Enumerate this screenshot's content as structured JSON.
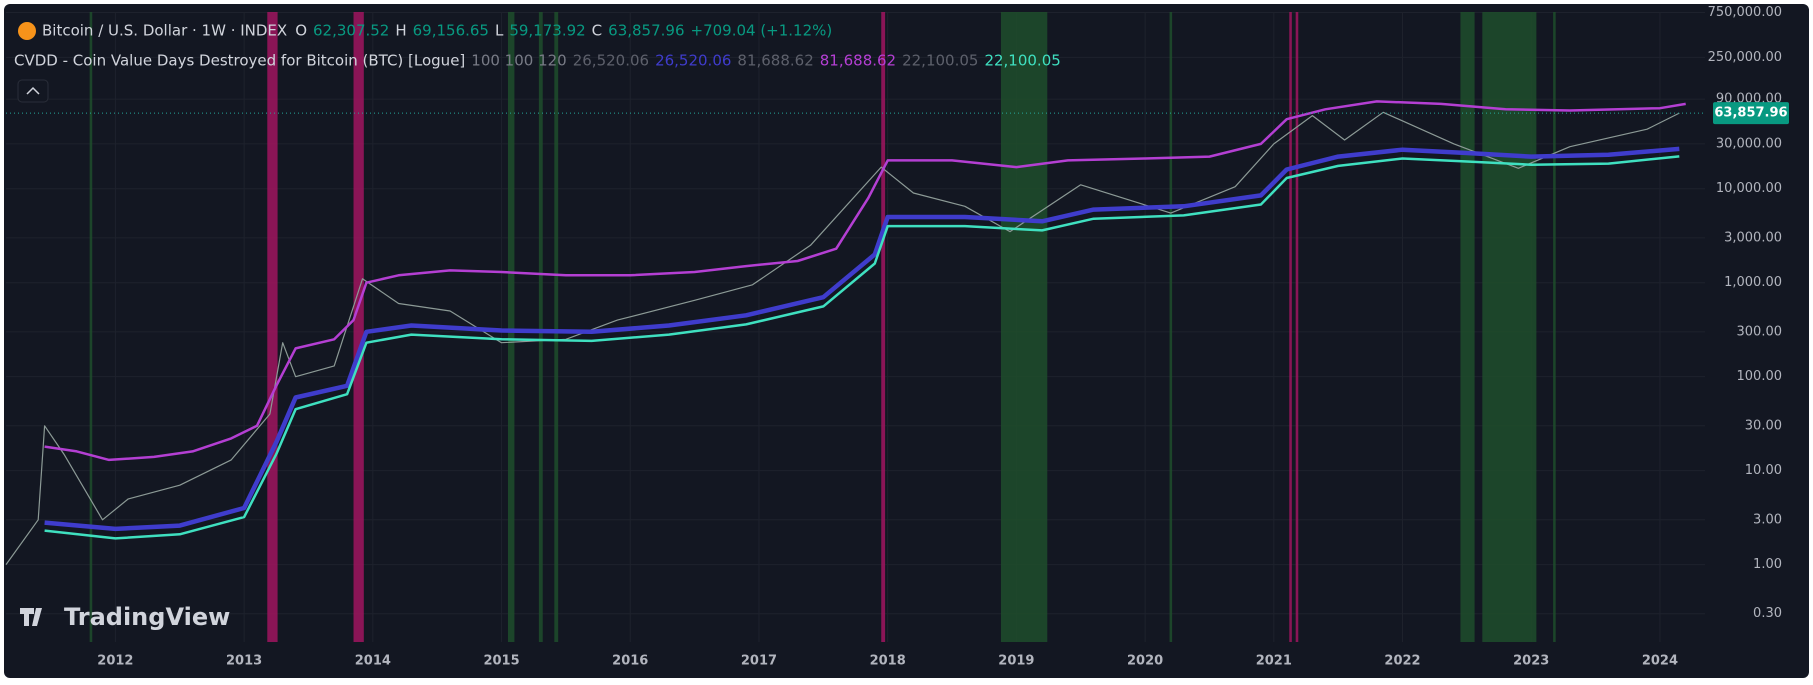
{
  "chart_data": {
    "type": "line",
    "header": {
      "symbol": "Bitcoin / U.S. Dollar · 1W · INDEX",
      "o_key": "O",
      "o": "62,307.52",
      "h_key": "H",
      "h": "69,156.65",
      "l_key": "L",
      "l": "59,173.92",
      "c_key": "C",
      "c": "63,857.96",
      "change": "+709.04 (+1.12%)",
      "indicator": "CVDD - Coin Value Days Destroyed for Bitcoin (BTC) [Logue]",
      "params": "100 100 120",
      "v1_muted": "26,520.06",
      "v1": "26,520.06",
      "v2_muted": "81,688.62",
      "v2": "81,688.62",
      "v3_muted": "22,100.05",
      "v3": "22,100.05"
    },
    "logo": "TradingView",
    "price_label": "63,857.96",
    "log_scale": true,
    "grid": true,
    "xlim": [
      2011.15,
      2024.35
    ],
    "ylim": [
      0.15,
      760000
    ],
    "xticks": [
      2012,
      2013,
      2014,
      2015,
      2016,
      2017,
      2018,
      2019,
      2020,
      2021,
      2022,
      2023,
      2024
    ],
    "yticks": [
      {
        "value": 750000,
        "label": "750,000.00"
      },
      {
        "value": 250000,
        "label": "250,000.00"
      },
      {
        "value": 90000,
        "label": "90,000.00"
      },
      {
        "value": 30000,
        "label": "30,000.00"
      },
      {
        "value": 10000,
        "label": "10,000.00"
      },
      {
        "value": 3000,
        "label": "3,000.00"
      },
      {
        "value": 1000,
        "label": "1,000.00"
      },
      {
        "value": 300,
        "label": "300.00"
      },
      {
        "value": 100,
        "label": "100.00"
      },
      {
        "value": 30,
        "label": "30.00"
      },
      {
        "value": 10,
        "label": "10.00"
      },
      {
        "value": 3,
        "label": "3.00"
      },
      {
        "value": 1,
        "label": "1.00"
      },
      {
        "value": 0.3,
        "label": "0.30"
      }
    ],
    "highlights": [
      {
        "start": 2011.8,
        "end": 2011.82,
        "color": "#1f4d2c"
      },
      {
        "start": 2013.18,
        "end": 2013.26,
        "color": "#a0155f"
      },
      {
        "start": 2013.85,
        "end": 2013.93,
        "color": "#a0155f"
      },
      {
        "start": 2015.05,
        "end": 2015.1,
        "color": "#1f4d2c"
      },
      {
        "start": 2015.29,
        "end": 2015.32,
        "color": "#1f4d2c"
      },
      {
        "start": 2015.41,
        "end": 2015.44,
        "color": "#1f4d2c"
      },
      {
        "start": 2017.95,
        "end": 2017.98,
        "color": "#a0155f"
      },
      {
        "start": 2018.88,
        "end": 2019.24,
        "color": "#1f4d2c"
      },
      {
        "start": 2020.19,
        "end": 2020.21,
        "color": "#1f4d2c"
      },
      {
        "start": 2021.12,
        "end": 2021.14,
        "color": "#a0155f"
      },
      {
        "start": 2021.17,
        "end": 2021.19,
        "color": "#a0155f"
      },
      {
        "start": 2022.45,
        "end": 2022.56,
        "color": "#1f4d2c"
      },
      {
        "start": 2022.62,
        "end": 2023.04,
        "color": "#1f4d2c"
      },
      {
        "start": 2023.17,
        "end": 2023.19,
        "color": "#1f4d2c"
      }
    ],
    "series": [
      {
        "color": "#8c9a96",
        "width": 1.2,
        "x": [
          2011.15,
          2011.4,
          2011.45,
          2011.6,
          2011.9,
          2012.1,
          2012.5,
          2012.9,
          2013.2,
          2013.3,
          2013.4,
          2013.7,
          2013.92,
          2014.2,
          2014.6,
          2015.0,
          2015.5,
          2015.9,
          2016.5,
          2016.95,
          2017.4,
          2017.95,
          2018.2,
          2018.6,
          2018.95,
          2019.5,
          2020.2,
          2020.7,
          2021.0,
          2021.3,
          2021.55,
          2021.85,
          2022.4,
          2022.9,
          2023.3,
          2023.9,
          2024.15
        ],
        "values": [
          1,
          3,
          30,
          15,
          3,
          5,
          7,
          13,
          40,
          230,
          100,
          130,
          1100,
          600,
          500,
          230,
          250,
          400,
          650,
          950,
          2500,
          17000,
          9000,
          6500,
          3500,
          11000,
          5500,
          10500,
          30000,
          60000,
          33000,
          65000,
          30000,
          16500,
          28000,
          43000,
          63857.96
        ]
      },
      {
        "color": "#b43fd3",
        "width": 2.5,
        "x": [
          2011.45,
          2011.7,
          2011.95,
          2012.3,
          2012.6,
          2012.9,
          2013.1,
          2013.25,
          2013.4,
          2013.7,
          2013.85,
          2013.95,
          2014.2,
          2014.6,
          2015.0,
          2015.5,
          2016.0,
          2016.5,
          2016.9,
          2017.3,
          2017.6,
          2017.85,
          2018.0,
          2018.5,
          2019.0,
          2019.4,
          2020.0,
          2020.5,
          2020.9,
          2021.1,
          2021.4,
          2021.8,
          2022.3,
          2022.8,
          2023.3,
          2024.0,
          2024.2
        ],
        "values": [
          18,
          16,
          13,
          14,
          16,
          22,
          30,
          80,
          200,
          250,
          400,
          1000,
          1200,
          1350,
          1300,
          1200,
          1200,
          1300,
          1500,
          1700,
          2300,
          8000,
          20000,
          20000,
          17000,
          20000,
          21000,
          22000,
          30000,
          55000,
          70000,
          85000,
          80000,
          70000,
          68000,
          72000,
          80000
        ]
      },
      {
        "color": "#3f3ccc",
        "width": 4.5,
        "x": [
          2011.45,
          2012.0,
          2012.5,
          2013.0,
          2013.25,
          2013.4,
          2013.8,
          2013.95,
          2014.3,
          2015.0,
          2015.7,
          2016.3,
          2016.9,
          2017.5,
          2017.9,
          2018.0,
          2018.6,
          2019.2,
          2019.6,
          2020.3,
          2020.9,
          2021.1,
          2021.5,
          2022.0,
          2022.5,
          2023.0,
          2023.6,
          2024.15
        ],
        "values": [
          2.8,
          2.4,
          2.6,
          4,
          20,
          60,
          80,
          300,
          350,
          310,
          300,
          350,
          450,
          700,
          2000,
          5000,
          5000,
          4500,
          6000,
          6500,
          8500,
          16000,
          22000,
          26000,
          24000,
          22000,
          23000,
          26520
        ]
      },
      {
        "color": "#3fe0c0",
        "width": 2.5,
        "x": [
          2011.45,
          2012.0,
          2012.5,
          2013.0,
          2013.25,
          2013.4,
          2013.8,
          2013.95,
          2014.3,
          2015.0,
          2015.7,
          2016.3,
          2016.9,
          2017.5,
          2017.9,
          2018.0,
          2018.6,
          2019.2,
          2019.6,
          2020.3,
          2020.9,
          2021.1,
          2021.5,
          2022.0,
          2022.5,
          2023.0,
          2023.6,
          2024.15
        ],
        "values": [
          2.3,
          1.9,
          2.1,
          3.2,
          15,
          45,
          65,
          230,
          280,
          250,
          240,
          280,
          360,
          560,
          1600,
          4000,
          4000,
          3600,
          4800,
          5200,
          6800,
          13000,
          17500,
          21000,
          19500,
          18000,
          18500,
          22100
        ]
      }
    ]
  }
}
